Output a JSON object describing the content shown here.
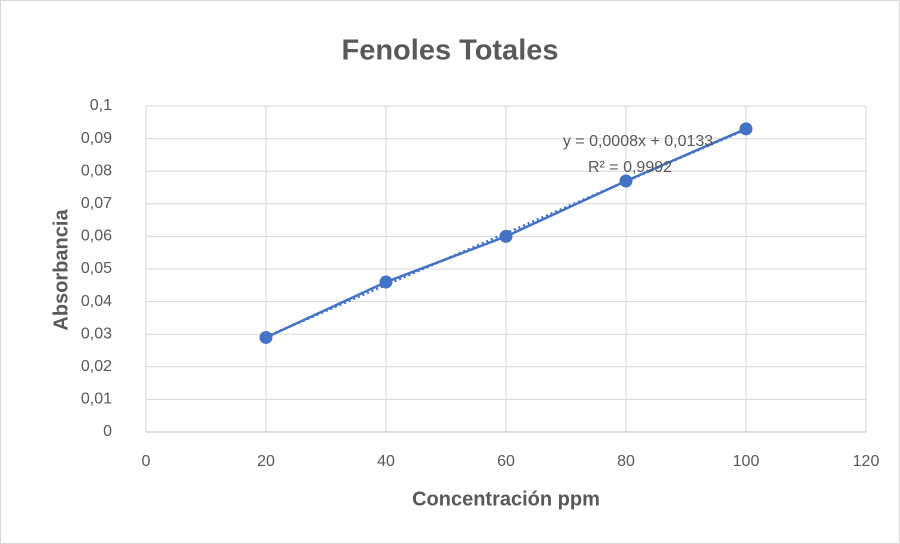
{
  "chart_data": {
    "type": "scatter",
    "title": "Fenoles Totales",
    "x_label": "Concentración ppm",
    "y_label": "Absorbancia",
    "x": [
      20,
      40,
      60,
      80,
      100
    ],
    "series": [
      {
        "name": "Absorbancia",
        "color": "#4472c4",
        "values": [
          0.029,
          0.046,
          0.06,
          0.077,
          0.093
        ]
      }
    ],
    "xlim": [
      0,
      120
    ],
    "xticks": [
      0,
      20,
      40,
      60,
      80,
      100,
      120
    ],
    "ylim": [
      0,
      0.1
    ],
    "yticks": [
      0,
      {
        "value": 0.01,
        "label": "0,01"
      },
      {
        "value": 0.02,
        "label": "0,02"
      },
      {
        "value": 0.03,
        "label": "0,03"
      },
      {
        "value": 0.04,
        "label": "0,04"
      },
      {
        "value": 0.05,
        "label": "0,05"
      },
      {
        "value": 0.06,
        "label": "0,06"
      },
      {
        "value": 0.07,
        "label": "0,07"
      },
      {
        "value": 0.08,
        "label": "0,08"
      },
      {
        "value": 0.09,
        "label": "0,09"
      },
      {
        "value": 0.1,
        "label": "0,1"
      }
    ],
    "grid": true,
    "trendline": "linear",
    "annotations": [
      "y = 0,0008x + 0,0133",
      "R² = 0,9992"
    ]
  }
}
